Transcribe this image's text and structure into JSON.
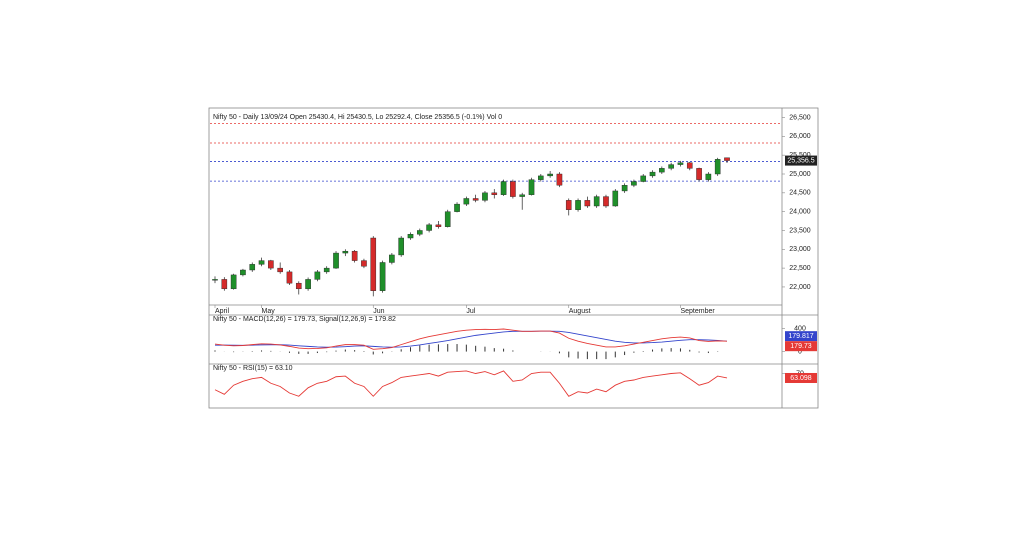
{
  "chart_data": [
    {
      "type": "candlestick",
      "title": "Nifty 50 - Daily 13/09/24 Open 25430.4, Hi 25430.5, Lo 25292.4, Close 25356.5 (-0.1%) Vol 0",
      "categories": [
        "April",
        null,
        null,
        null,
        null,
        "May",
        null,
        null,
        null,
        null,
        null,
        null,
        null,
        null,
        null,
        null,
        null,
        "Jun",
        null,
        null,
        null,
        null,
        null,
        null,
        null,
        null,
        null,
        "Jul",
        null,
        null,
        null,
        null,
        null,
        null,
        null,
        null,
        null,
        null,
        "August",
        null,
        null,
        null,
        null,
        null,
        null,
        null,
        null,
        null,
        null,
        null,
        "September",
        null,
        null,
        null,
        null,
        null
      ],
      "open": [
        22180,
        22200,
        21950,
        22320,
        22450,
        22600,
        22700,
        22500,
        22400,
        22100,
        21950,
        22200,
        22400,
        22500,
        22900,
        22950,
        22700,
        23300,
        21900,
        22650,
        22850,
        23300,
        23400,
        23500,
        23650,
        23600,
        24000,
        24200,
        24350,
        24300,
        24500,
        24450,
        24800,
        24400,
        24450,
        24850,
        24950,
        25000,
        24300,
        24050,
        24300,
        24150,
        24400,
        24150,
        24550,
        24700,
        24800,
        24950,
        25050,
        25150,
        25250,
        25300,
        25150,
        24850,
        25000,
        25430.4
      ],
      "high": [
        22280,
        22260,
        22350,
        22480,
        22650,
        22780,
        22720,
        22650,
        22450,
        22150,
        22250,
        22450,
        22550,
        22950,
        23000,
        22980,
        22750,
        23350,
        22700,
        22900,
        23350,
        23450,
        23550,
        23700,
        23750,
        24050,
        24250,
        24400,
        24450,
        24550,
        24600,
        24850,
        24850,
        24500,
        24900,
        25000,
        25080,
        25050,
        24350,
        24350,
        24400,
        24450,
        24450,
        24600,
        24750,
        24850,
        25000,
        25100,
        25200,
        25300,
        25350,
        25320,
        25170,
        25050,
        25430,
        25430.5
      ],
      "low": [
        22100,
        21900,
        21930,
        22280,
        22400,
        22550,
        22450,
        22350,
        22050,
        21800,
        21900,
        22150,
        22350,
        22480,
        22820,
        22650,
        22500,
        21750,
        21850,
        22600,
        22800,
        23250,
        23350,
        23450,
        23550,
        23580,
        23980,
        24150,
        24250,
        24250,
        24350,
        24420,
        24350,
        24050,
        24430,
        24800,
        24900,
        24650,
        23900,
        24000,
        24100,
        24100,
        24100,
        24130,
        24500,
        24650,
        24780,
        24900,
        25000,
        25100,
        25200,
        25100,
        24800,
        24800,
        24950,
        25292.4
      ],
      "close": [
        22200,
        21950,
        22320,
        22450,
        22600,
        22700,
        22500,
        22400,
        22100,
        21950,
        22200,
        22400,
        22500,
        22900,
        22950,
        22700,
        22550,
        21900,
        22650,
        22850,
        23300,
        23400,
        23500,
        23650,
        23600,
        24000,
        24200,
        24350,
        24300,
        24500,
        24450,
        24800,
        24400,
        24450,
        24850,
        24950,
        25000,
        24700,
        24050,
        24300,
        24150,
        24400,
        24150,
        24550,
        24700,
        24800,
        24950,
        25050,
        25150,
        25250,
        25300,
        25150,
        24850,
        25000,
        25390,
        25356.5
      ],
      "last_label": "25,356.5",
      "up_color": "#1f8f2a",
      "down_color": "#d42a2a",
      "hlines": [
        {
          "value": 26344,
          "color": "#e53935"
        },
        {
          "value": 25824,
          "color": "#e53935"
        },
        {
          "value": 25330,
          "color": "#3344cc"
        },
        {
          "value": 24810,
          "color": "#3344cc"
        }
      ],
      "ylim": [
        21600,
        26700
      ],
      "yticks": [
        {
          "value": 22000,
          "label": "22,000"
        },
        {
          "value": 22500,
          "label": "22,500"
        },
        {
          "value": 23000,
          "label": "23,000"
        },
        {
          "value": 23500,
          "label": "23,500"
        },
        {
          "value": 24000,
          "label": "24,000"
        },
        {
          "value": 24500,
          "label": "24,500"
        },
        {
          "value": 25000,
          "label": "25,000"
        },
        {
          "value": 25500,
          "label": "25,500"
        },
        {
          "value": 26000,
          "label": "26,000"
        },
        {
          "value": 26500,
          "label": "26,500"
        }
      ]
    },
    {
      "type": "line",
      "title": "Nifty 50 - MACD(12,26) = 179.73, Signal(12,26,9) = 179.82",
      "series": [
        {
          "color": "#3344cc",
          "values": [
            110,
            112,
            110,
            109,
            111,
            115,
            118,
            118,
            112,
            100,
            90,
            80,
            75,
            78,
            85,
            95,
            100,
            90,
            80,
            75,
            80,
            95,
            115,
            140,
            165,
            190,
            220,
            250,
            280,
            300,
            320,
            340,
            350,
            350,
            350,
            352,
            353,
            350,
            330,
            300,
            270,
            240,
            210,
            180,
            160,
            150,
            150,
            155,
            165,
            180,
            195,
            205,
            205,
            200,
            192,
            179.817
          ]
        },
        {
          "color": "#e53935",
          "values": [
            130,
            110,
            100,
            105,
            120,
            135,
            130,
            115,
            90,
            60,
            50,
            55,
            65,
            95,
            120,
            120,
            110,
            40,
            50,
            70,
            120,
            170,
            220,
            260,
            290,
            320,
            350,
            370,
            380,
            385,
            380,
            390,
            370,
            350,
            350,
            355,
            355,
            320,
            230,
            180,
            140,
            110,
            80,
            80,
            100,
            130,
            160,
            190,
            220,
            240,
            250,
            235,
            190,
            175,
            185,
            179.73
          ]
        }
      ],
      "histogram": {
        "color": "#333333",
        "values": [
          20,
          -2,
          -10,
          -4,
          9,
          20,
          12,
          -3,
          -22,
          -40,
          -40,
          -25,
          -10,
          17,
          35,
          25,
          10,
          -50,
          -30,
          -5,
          40,
          75,
          105,
          120,
          125,
          130,
          130,
          120,
          100,
          85,
          60,
          50,
          20,
          0,
          0,
          3,
          2,
          -30,
          -100,
          -120,
          -130,
          -130,
          -130,
          -100,
          -60,
          -20,
          10,
          35,
          55,
          60,
          55,
          30,
          -15,
          -25,
          -7,
          -0.09
        ]
      },
      "ylim": [
        -180,
        580
      ],
      "yticks": [
        0,
        400
      ]
    },
    {
      "type": "line",
      "title": "Nifty 50 - RSI(15) = 63.10",
      "series": [
        {
          "color": "#e53935",
          "values": [
            45,
            38,
            52,
            58,
            62,
            64,
            55,
            50,
            40,
            35,
            48,
            55,
            58,
            65,
            66,
            55,
            50,
            35,
            50,
            56,
            64,
            66,
            68,
            70,
            66,
            72,
            73,
            74,
            70,
            73,
            68,
            74,
            58,
            60,
            70,
            72,
            72,
            55,
            35,
            42,
            40,
            46,
            42,
            52,
            58,
            60,
            64,
            66,
            68,
            70,
            71,
            62,
            52,
            56,
            66,
            63.098
          ]
        }
      ],
      "ylim": [
        20,
        80
      ],
      "yticks": [
        70
      ]
    }
  ]
}
